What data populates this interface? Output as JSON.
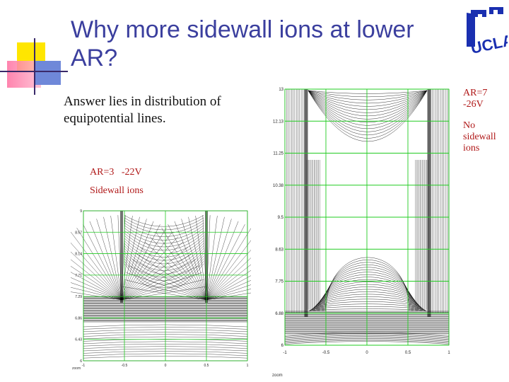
{
  "slide": {
    "title": "Why more sidewall ions at lower AR?",
    "answer_text": "Answer lies in distribution of equipotential lines.",
    "left_panel": {
      "label_ar": "AR=3   -22V",
      "label_result": "Sidewall ions",
      "y_ticks": [
        "9",
        "8.57",
        "8.14",
        "7.71",
        "7.29",
        "6.86",
        "6.43",
        "6"
      ],
      "x_ticks": [
        "-1",
        "-0.5",
        "0",
        "0.5",
        "1"
      ],
      "corner_note": "zoom"
    },
    "right_panel": {
      "label_ar": "AR=7",
      "label_voltage": "-26V",
      "label_result": "No sidewall ions",
      "y_ticks": [
        "13",
        "12.13",
        "11.25",
        "10.38",
        "9.5",
        "8.63",
        "7.75",
        "6.88",
        "6"
      ],
      "x_ticks": [
        "-1",
        "-0.5",
        "0",
        "0.5",
        "1"
      ],
      "corner_note": "zoom"
    },
    "logo_text": "UCLA",
    "colors": {
      "title": "#3b3f9e",
      "label_red": "#b01818",
      "grid_green": "#22cc22",
      "logo_blue": "#1a2fb0"
    }
  }
}
